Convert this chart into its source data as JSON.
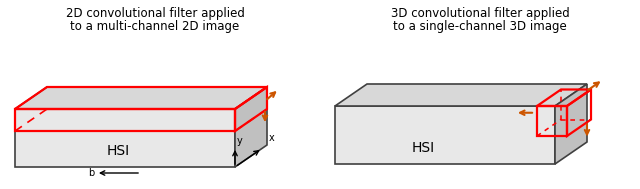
{
  "bg_color": "#ffffff",
  "box_face_top": "#d8d8d8",
  "box_face_front": "#e8e8e8",
  "box_face_side": "#c0c0c0",
  "box_edge_color": "#404040",
  "red_color": "#ff0000",
  "orange_color": "#cc5500",
  "title1_line1": "2D convolutional filter applied",
  "title1_line2": "to a multi-channel 2D image",
  "title2_line1": "3D convolutional filter applied",
  "title2_line2": "to a single-channel 3D image"
}
